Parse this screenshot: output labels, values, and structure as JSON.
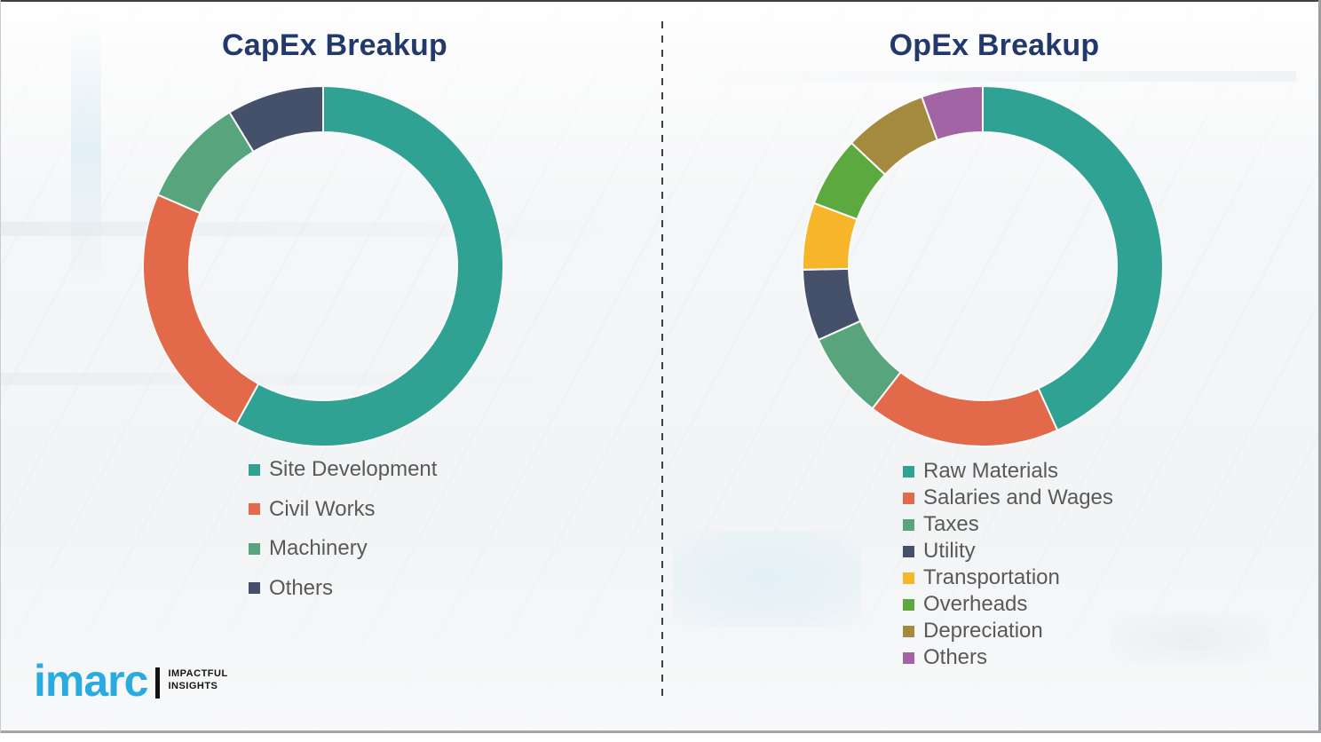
{
  "page": {
    "background_color": "#f7f8f9",
    "divider_style": "vertical-dashed",
    "divider_color": "#3f3f3f",
    "title_color": "#24396B",
    "legend_text_color": "#595959"
  },
  "branding": {
    "logo_text": "imarc",
    "tagline_line1": "IMPACTFUL",
    "tagline_line2": "INSIGHTS",
    "logo_color": "#29ABE2"
  },
  "chart_data": [
    {
      "type": "pie",
      "subtype": "donut",
      "title": "CapEx Breakup",
      "units": "percent",
      "value_labels_shown": false,
      "start_angle_deg": 0,
      "direction": "clockwise",
      "legend_position": "below-left",
      "segments": [
        {
          "label": "Site Development",
          "value": 58.0,
          "color": "#2FA294"
        },
        {
          "label": "Civil Works",
          "value": 23.5,
          "color": "#E26A4B"
        },
        {
          "label": "Machinery",
          "value": 9.8,
          "color": "#58A57D"
        },
        {
          "label": "Others",
          "value": 8.7,
          "color": "#45506A"
        }
      ]
    },
    {
      "type": "pie",
      "subtype": "donut",
      "title": "OpEx Breakup",
      "units": "percent",
      "value_labels_shown": false,
      "start_angle_deg": 0,
      "direction": "clockwise",
      "legend_position": "below-left",
      "segments": [
        {
          "label": "Raw Materials",
          "value": 43.2,
          "color": "#2FA294"
        },
        {
          "label": "Salaries and Wages",
          "value": 17.3,
          "color": "#E26A4B"
        },
        {
          "label": "Taxes",
          "value": 7.8,
          "color": "#58A57D"
        },
        {
          "label": "Utility",
          "value": 6.4,
          "color": "#45506A"
        },
        {
          "label": "Transportation",
          "value": 6.0,
          "color": "#F7B629"
        },
        {
          "label": "Overheads",
          "value": 6.3,
          "color": "#5CA93F"
        },
        {
          "label": "Depreciation",
          "value": 7.5,
          "color": "#A38A3E"
        },
        {
          "label": "Others",
          "value": 5.5,
          "color": "#A264A5"
        }
      ]
    }
  ]
}
